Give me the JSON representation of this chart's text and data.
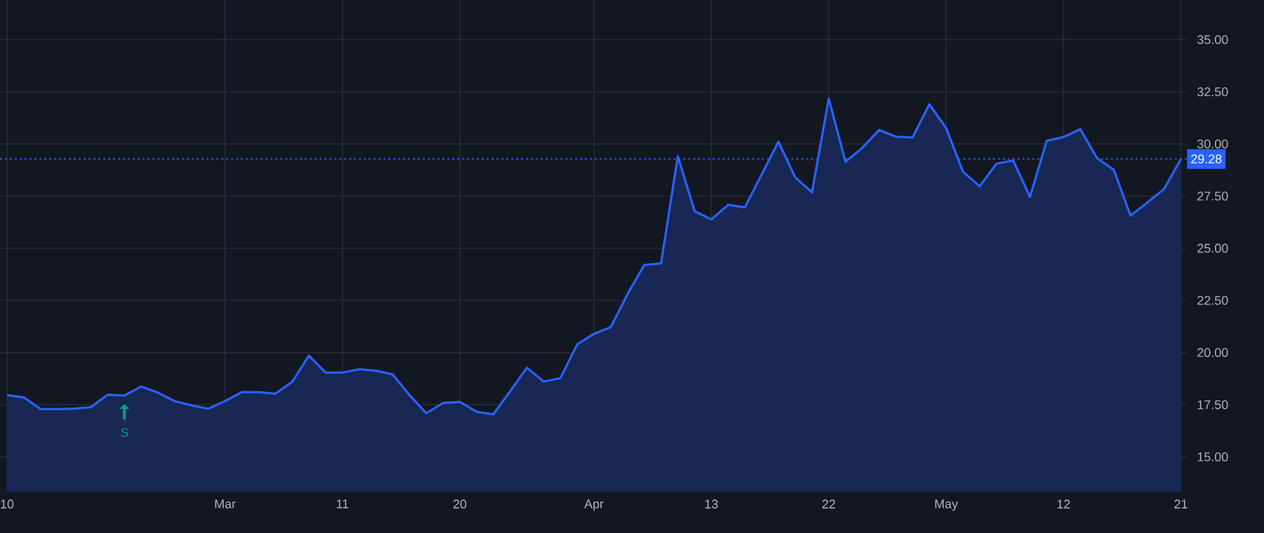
{
  "chart_data": {
    "type": "area",
    "categories": [
      "10",
      null,
      null,
      null,
      null,
      null,
      null,
      null,
      null,
      null,
      null,
      null,
      null,
      "Mar",
      null,
      null,
      null,
      null,
      null,
      null,
      "11",
      null,
      null,
      null,
      null,
      null,
      null,
      "20",
      null,
      null,
      null,
      null,
      null,
      null,
      null,
      "Apr",
      null,
      null,
      null,
      null,
      null,
      null,
      "13",
      null,
      null,
      null,
      null,
      null,
      null,
      "22",
      null,
      null,
      null,
      null,
      null,
      null,
      "May",
      null,
      null,
      null,
      null,
      null,
      null,
      "12",
      null,
      null,
      null,
      null,
      null,
      null,
      "21"
    ],
    "series": [
      {
        "color": "#2962ff",
        "values": [
          17.96,
          17.85,
          17.29,
          17.29,
          17.31,
          17.38,
          17.98,
          17.94,
          18.37,
          18.08,
          17.67,
          17.47,
          17.31,
          17.67,
          18.1,
          18.1,
          18.03,
          18.59,
          19.85,
          19.04,
          19.04,
          19.2,
          19.13,
          18.95,
          17.96,
          17.09,
          17.58,
          17.63,
          17.16,
          17.04,
          18.14,
          19.27,
          18.61,
          18.77,
          20.39,
          20.9,
          21.22,
          22.8,
          24.2,
          24.27,
          29.41,
          26.78,
          26.38,
          27.08,
          26.96,
          28.54,
          30.11,
          28.4,
          27.68,
          32.17,
          29.14,
          29.81,
          30.67,
          30.35,
          30.31,
          31.9,
          30.76,
          28.67,
          27.97,
          29.05,
          29.21,
          27.46,
          30.15,
          30.33,
          30.71,
          29.32,
          28.76,
          26.56,
          27.19,
          27.84,
          29.28
        ]
      }
    ],
    "ylim": [
      13.3,
      36.9
    ],
    "yticks": [
      {
        "value": 15,
        "label": "15.00"
      },
      {
        "value": 17.5,
        "label": "17.50"
      },
      {
        "value": 20,
        "label": "20.00"
      },
      {
        "value": 22.5,
        "label": "22.50"
      },
      {
        "value": 25,
        "label": "25.00"
      },
      {
        "value": 27.5,
        "label": "27.50"
      },
      {
        "value": 30,
        "label": "30.00"
      },
      {
        "value": 32.5,
        "label": "32.50"
      },
      {
        "value": 35,
        "label": "35.00"
      }
    ],
    "ref_lines": [
      {
        "axis": "y",
        "value": 29.28,
        "label": "29.28",
        "color": "#2962ff",
        "line_style": "dotted"
      }
    ],
    "annotations": [
      {
        "text": "S",
        "y": 17.94
      }
    ],
    "grid": true
  }
}
